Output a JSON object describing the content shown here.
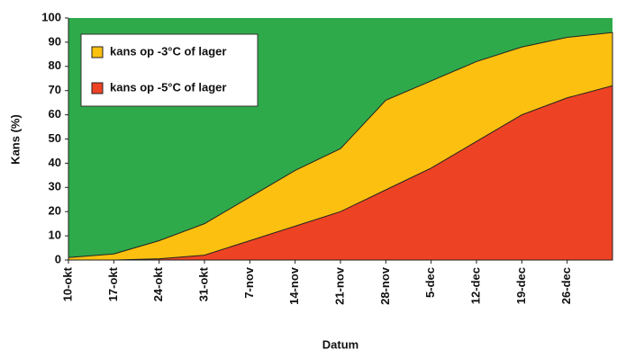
{
  "chart_data": {
    "type": "area",
    "y_label": "Kans (%)",
    "x_label": "Datum",
    "background": "#2eaa4a",
    "categories": [
      "10-okt",
      "17-okt",
      "24-okt",
      "31-okt",
      "7-nov",
      "14-nov",
      "21-nov",
      "28-nov",
      "5-dec",
      "12-dec",
      "19-dec",
      "26-dec",
      null
    ],
    "series": [
      {
        "name": "kans op -3°C of lager",
        "color": "#fcc010",
        "values": [
          1,
          2.5,
          8,
          15,
          26,
          37,
          46,
          66,
          74,
          82,
          88,
          92,
          94
        ]
      },
      {
        "name": "kans op -5°C of lager",
        "color": "#ee4224",
        "values": [
          0,
          0,
          0.5,
          2,
          8,
          14,
          20,
          29,
          38,
          49,
          60,
          67,
          72
        ]
      }
    ],
    "ylim": [
      0,
      100
    ],
    "yticks": [
      0,
      10,
      20,
      30,
      40,
      50,
      60,
      70,
      80,
      90,
      100
    ]
  }
}
